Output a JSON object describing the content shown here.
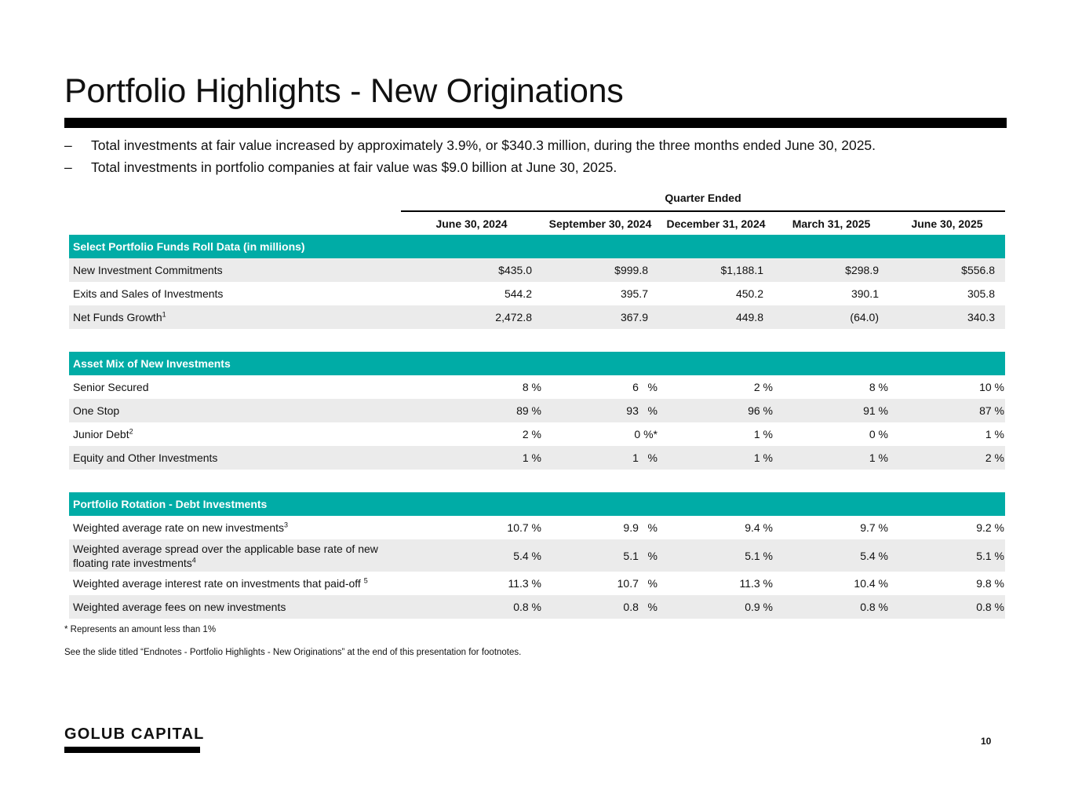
{
  "title": "Portfolio Highlights - New Originations",
  "bullets": [
    "Total investments at fair value increased by approximately 3.9%, or $340.3 million, during the three months ended June 30, 2025.",
    "Total investments in portfolio companies at fair value was $9.0 billion at June 30, 2025."
  ],
  "bullet_marker": "–",
  "quarter_ended_label": "Quarter Ended",
  "columns": [
    "June 30, 2024",
    "September 30, 2024",
    "December 31, 2024",
    "March 31, 2025",
    "June 30, 2025"
  ],
  "sections": {
    "funds_roll": {
      "header": "Select Portfolio Funds Roll Data (in millions)",
      "rows": [
        {
          "label": "New Investment Commitments",
          "sup": "",
          "values": [
            "$435.0",
            "$999.8",
            "$1,188.1",
            "$298.9",
            "$556.8"
          ]
        },
        {
          "label": "Exits and Sales of Investments",
          "sup": "",
          "values": [
            "544.2",
            "395.7",
            "450.2",
            "390.1",
            "305.8"
          ]
        },
        {
          "label": "Net Funds Growth",
          "sup": "1",
          "values": [
            "2,472.8",
            "367.9",
            "449.8",
            "(64.0)",
            "340.3"
          ]
        }
      ]
    },
    "asset_mix": {
      "header": "Asset Mix of New Investments",
      "rows": [
        {
          "label": "Senior Secured",
          "sup": "",
          "values": [
            "8 %",
            "6   %",
            "2 %",
            "8 %",
            "10 %"
          ]
        },
        {
          "label": "One Stop",
          "sup": "",
          "values": [
            "89 %",
            "93   %",
            "96 %",
            "91 %",
            "87 %"
          ]
        },
        {
          "label": "Junior Debt",
          "sup": "2",
          "values": [
            "2 %",
            "0 %*",
            "1 %",
            "0 %",
            "1 %"
          ]
        },
        {
          "label": "Equity and Other Investments",
          "sup": "",
          "values": [
            "1 %",
            "1   %",
            "1 %",
            "1 %",
            "2 %"
          ]
        }
      ]
    },
    "rotation": {
      "header": "Portfolio Rotation - Debt Investments",
      "rows": [
        {
          "label": "Weighted average rate on new investments",
          "sup": "3",
          "values": [
            "10.7 %",
            "9.9   %",
            "9.4 %",
            "9.7 %",
            "9.2 %"
          ]
        },
        {
          "label": "Weighted average spread over the applicable base rate of new floating rate investments",
          "sup": "4",
          "values": [
            "5.4 %",
            "5.1   %",
            "5.1 %",
            "5.4 %",
            "5.1 %"
          ]
        },
        {
          "label": "Weighted average interest rate on investments that paid-off ",
          "sup": "5",
          "values": [
            "11.3 %",
            "10.7   %",
            "11.3 %",
            "10.4 %",
            "9.8 %"
          ]
        },
        {
          "label": "Weighted average fees on new investments",
          "sup": "",
          "values": [
            "0.8 %",
            "0.8   %",
            "0.9 %",
            "0.8 %",
            "0.8 %"
          ]
        }
      ]
    }
  },
  "notes": {
    "asterisk": "* Represents an amount less than 1%",
    "endnotes": "See the slide titled “Endnotes - Portfolio Highlights - New Originations” at the end of this presentation for footnotes."
  },
  "logo": "GOLUB CAPITAL",
  "page_number": "10",
  "colors": {
    "accent": "#00aca6",
    "shade": "#ebebeb",
    "rule": "#000000"
  }
}
